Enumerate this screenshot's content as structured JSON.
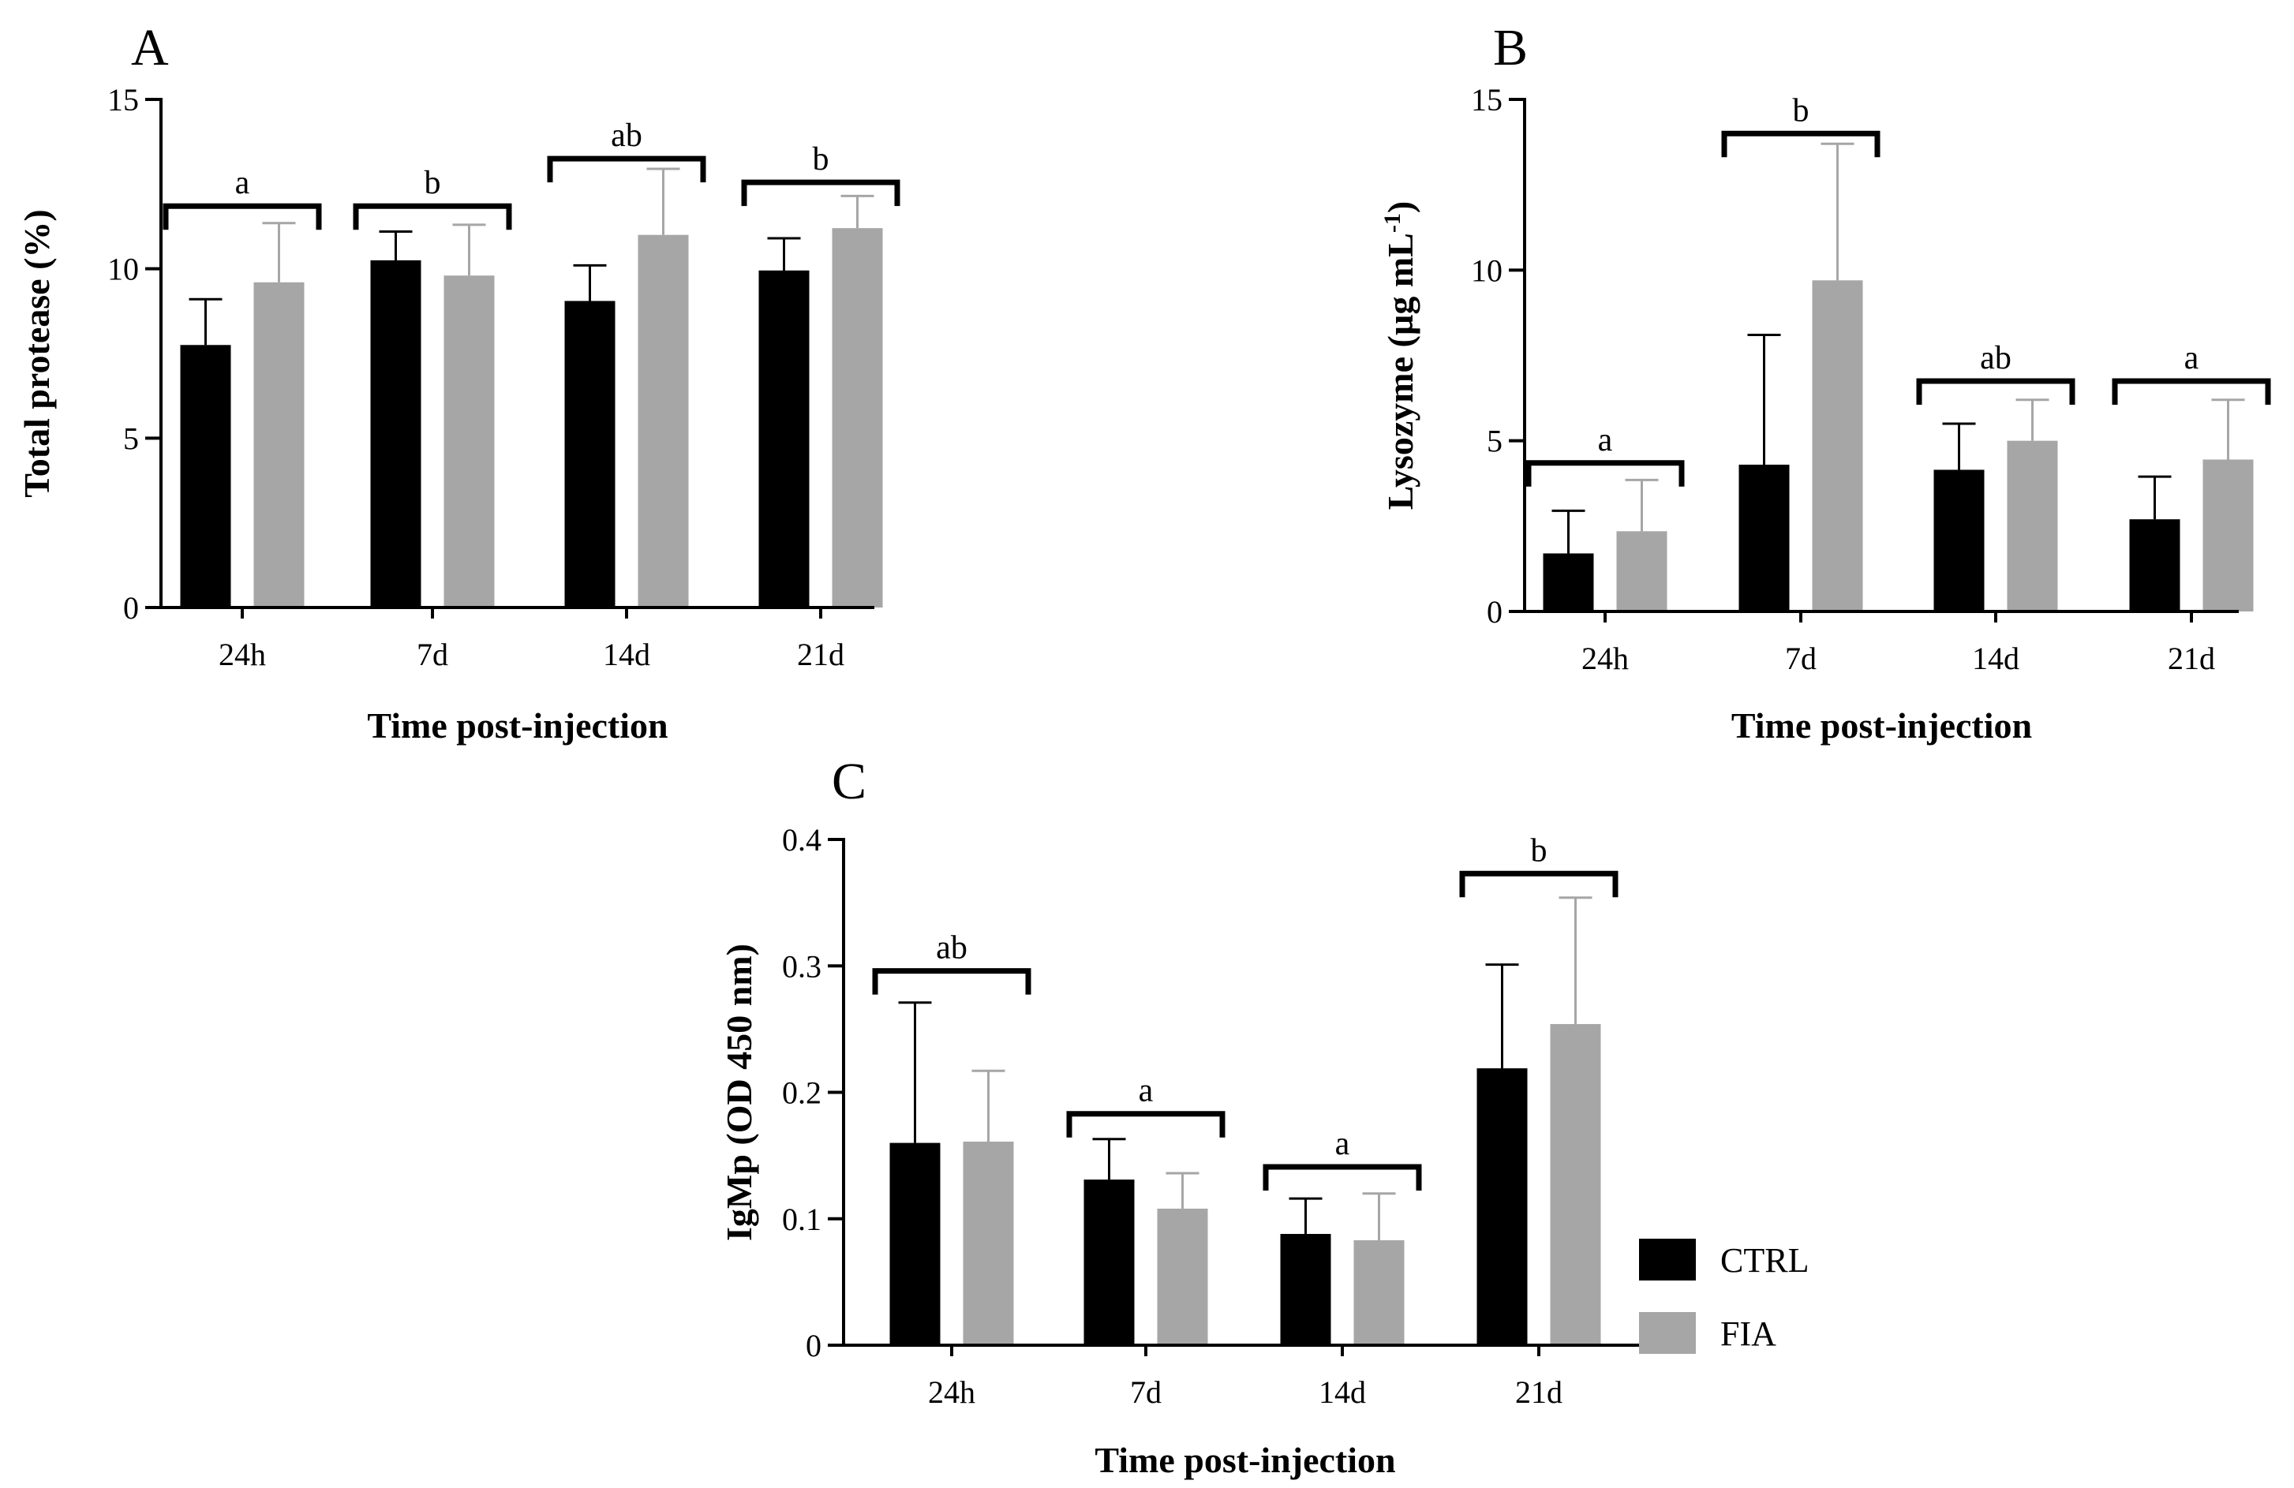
{
  "chart_data": [
    {
      "panel": "A",
      "type": "bar",
      "categories": [
        "24h",
        "7d",
        "14d",
        "21d"
      ],
      "series": [
        {
          "name": "CTRL",
          "values": [
            7.75,
            10.25,
            9.05,
            9.95
          ],
          "errors": [
            1.35,
            0.85,
            1.05,
            0.95
          ]
        },
        {
          "name": "FIA",
          "values": [
            9.6,
            9.8,
            11.0,
            11.2
          ],
          "errors": [
            1.75,
            1.5,
            1.95,
            0.95
          ]
        }
      ],
      "significance": [
        "a",
        "b",
        "ab",
        "b"
      ],
      "sig_levels": [
        11.85,
        11.85,
        13.25,
        12.55
      ],
      "xlabel": "Time post-injection",
      "ylabel": "Total protease (%)",
      "ylim": [
        0,
        15
      ],
      "yticks": [
        "0",
        "5",
        "10",
        "15"
      ],
      "ytick_values": [
        0,
        5,
        10,
        15
      ]
    },
    {
      "panel": "B",
      "type": "bar",
      "categories": [
        "24h",
        "7d",
        "14d",
        "21d"
      ],
      "series": [
        {
          "name": "CTRL",
          "values": [
            1.7,
            4.3,
            4.15,
            2.7
          ],
          "errors": [
            1.25,
            3.8,
            1.35,
            1.25
          ]
        },
        {
          "name": "FIA",
          "values": [
            2.35,
            9.7,
            5.0,
            4.45
          ],
          "errors": [
            1.5,
            4.0,
            1.2,
            1.75
          ]
        }
      ],
      "significance": [
        "a",
        "b",
        "ab",
        "a"
      ],
      "sig_levels": [
        4.35,
        14.0,
        6.75,
        6.75
      ],
      "xlabel": "Time post-injection",
      "ylabel": "Lysozyme (µg mL",
      "ylabel_superscript": "-1",
      "ylabel_suffix": ")",
      "ylim": [
        0,
        15
      ],
      "yticks": [
        "0",
        "5",
        "10",
        "15"
      ],
      "ytick_values": [
        0,
        5,
        10,
        15
      ]
    },
    {
      "panel": "C",
      "type": "bar",
      "categories": [
        "24h",
        "7d",
        "14d",
        "21d"
      ],
      "series": [
        {
          "name": "CTRL",
          "values": [
            0.16,
            0.131,
            0.088,
            0.219
          ],
          "errors": [
            0.111,
            0.032,
            0.028,
            0.082
          ]
        },
        {
          "name": "FIA",
          "values": [
            0.161,
            0.108,
            0.083,
            0.254
          ],
          "errors": [
            0.056,
            0.028,
            0.037,
            0.1
          ]
        }
      ],
      "significance": [
        "ab",
        "a",
        "a",
        "b"
      ],
      "sig_levels": [
        0.296,
        0.183,
        0.141,
        0.373
      ],
      "xlabel": "Time post-injection",
      "ylabel": "IgMp (OD 450 nm)",
      "ylim": [
        0,
        0.4
      ],
      "yticks": [
        "0",
        "0.1",
        "0.2",
        "0.3",
        "0.4"
      ],
      "ytick_values": [
        0,
        0.1,
        0.2,
        0.3,
        0.4
      ]
    }
  ],
  "legend": [
    {
      "name": "CTRL",
      "color": "#000000"
    },
    {
      "name": "FIA",
      "color": "#a6a6a6"
    }
  ]
}
